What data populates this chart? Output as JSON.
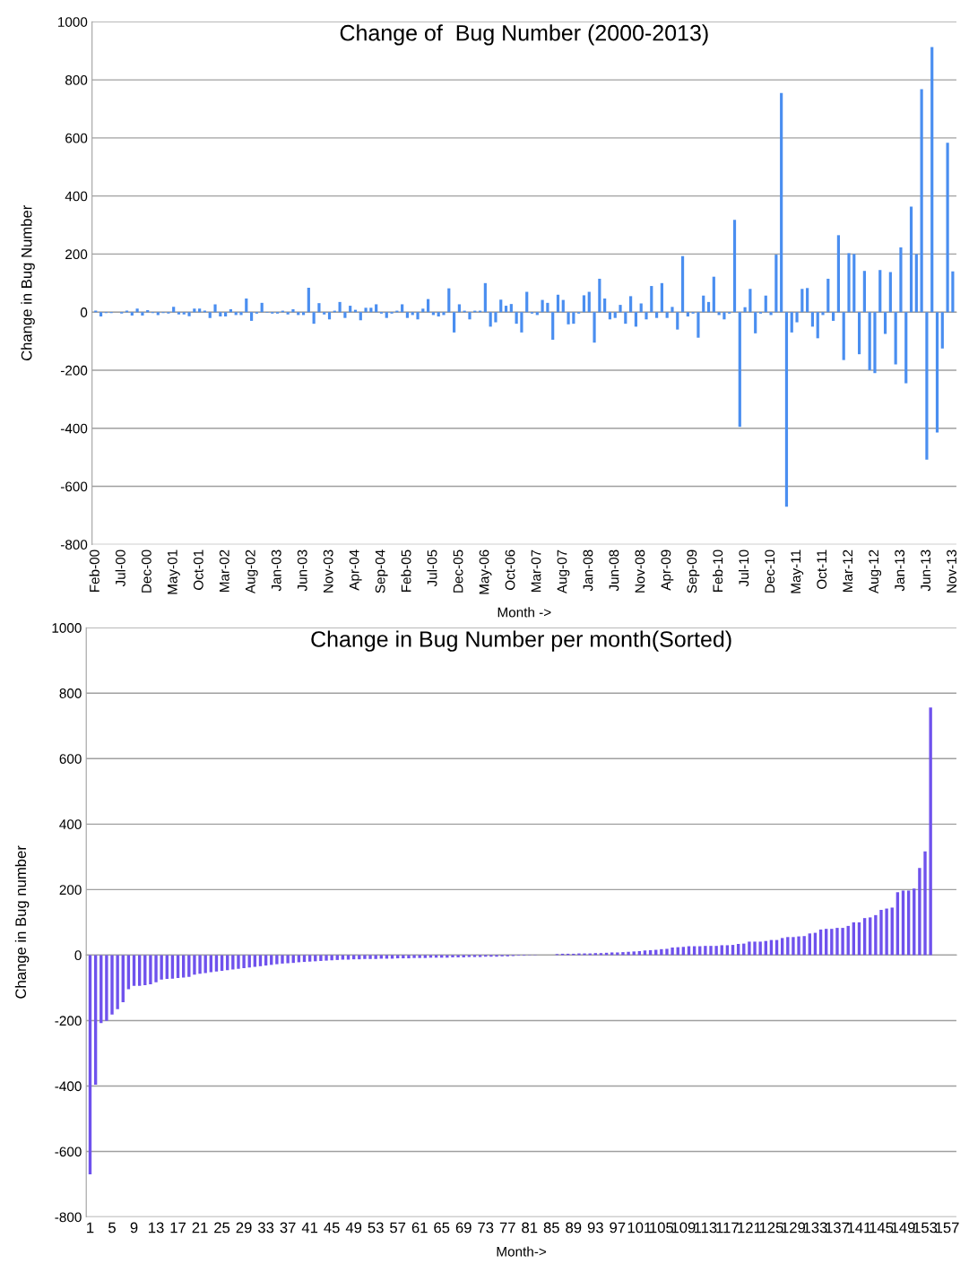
{
  "chart_data": [
    {
      "type": "bar",
      "title": "Change of  Bug Number (2000-2013)",
      "xlabel": "Month ->",
      "ylabel": "Change in Bug Number",
      "ylim": [
        -800,
        1000
      ],
      "yticks": [
        -800,
        -600,
        -400,
        -200,
        0,
        200,
        400,
        600,
        800,
        1000
      ],
      "grid": "y",
      "categories": [
        "Feb-00",
        null,
        null,
        null,
        null,
        "Jul-00",
        null,
        null,
        null,
        null,
        "Dec-00",
        null,
        null,
        null,
        null,
        "May-01",
        null,
        null,
        null,
        null,
        "Oct-01",
        null,
        null,
        null,
        null,
        "Mar-02",
        null,
        null,
        null,
        null,
        "Aug-02",
        null,
        null,
        null,
        null,
        "Jan-03",
        null,
        null,
        null,
        null,
        "Jun-03",
        null,
        null,
        null,
        null,
        "Nov-03",
        null,
        null,
        null,
        null,
        "Apr-04",
        null,
        null,
        null,
        null,
        "Sep-04",
        null,
        null,
        null,
        null,
        "Feb-05",
        null,
        null,
        null,
        null,
        "Jul-05",
        null,
        null,
        null,
        null,
        "Dec-05",
        null,
        null,
        null,
        null,
        "May-06",
        null,
        null,
        null,
        null,
        "Oct-06",
        null,
        null,
        null,
        null,
        "Mar-07",
        null,
        null,
        null,
        null,
        "Aug-07",
        null,
        null,
        null,
        null,
        "Jan-08",
        null,
        null,
        null,
        null,
        "Jun-08",
        null,
        null,
        null,
        null,
        "Nov-08",
        null,
        null,
        null,
        null,
        "Apr-09",
        null,
        null,
        null,
        null,
        "Sep-09",
        null,
        null,
        null,
        null,
        "Feb-10",
        null,
        null,
        null,
        null,
        "Jul-10",
        null,
        null,
        null,
        null,
        "Dec-10",
        null,
        null,
        null,
        null,
        "May-11",
        null,
        null,
        null,
        null,
        "Oct-11",
        null,
        null,
        null,
        null,
        "Mar-12",
        null,
        null,
        null,
        null,
        "Aug-12",
        null,
        null,
        null,
        null,
        "Jan-13",
        null,
        null,
        null,
        null,
        "Jun-13",
        null,
        null,
        null,
        null,
        "Nov-13"
      ],
      "series": [
        {
          "color": "#4a8ef0",
          "values": [
            5,
            -15,
            -3,
            -3,
            0,
            -5,
            5,
            -12,
            12,
            -12,
            7,
            -3,
            -10,
            -3,
            -5,
            18,
            -8,
            -8,
            -14,
            12,
            12,
            5,
            -20,
            27,
            -15,
            -15,
            10,
            -10,
            -10,
            47,
            -30,
            -5,
            32,
            -2,
            -5,
            -5,
            5,
            -8,
            10,
            -10,
            -10,
            84,
            -40,
            31,
            -8,
            -25,
            5,
            35,
            -20,
            22,
            8,
            -28,
            15,
            15,
            27,
            -5,
            -20,
            -5,
            5,
            27,
            -20,
            -10,
            -25,
            12,
            45,
            -10,
            -15,
            -10,
            82,
            -70,
            27,
            5,
            -25,
            5,
            5,
            100,
            -50,
            -35,
            43,
            22,
            28,
            -40,
            -70,
            70,
            -5,
            -10,
            42,
            32,
            -95,
            60,
            42,
            -42,
            -40,
            -5,
            58,
            70,
            -105,
            115,
            47,
            -25,
            -20,
            25,
            -40,
            55,
            -50,
            30,
            -25,
            90,
            -20,
            100,
            -20,
            18,
            -60,
            193,
            -15,
            -5,
            -88,
            57,
            35,
            122,
            -10,
            -25,
            -5,
            318,
            -395,
            17,
            80,
            -73,
            -5,
            57,
            -10,
            198,
            755,
            -670,
            -70,
            -35,
            80,
            83,
            -50,
            -90,
            -10,
            115,
            -30,
            265,
            -165,
            203,
            200,
            -145,
            142,
            -200,
            -210,
            145,
            -75,
            138,
            -180,
            223,
            -245,
            363,
            200,
            768,
            -508,
            913,
            -415,
            -125,
            583,
            140
          ]
        }
      ]
    },
    {
      "type": "bar",
      "title": "Change in Bug Number per month(Sorted)",
      "xlabel": "Month->",
      "ylabel": "Change in Bug number",
      "ylim": [
        -800,
        1000
      ],
      "yticks": [
        -800,
        -600,
        -400,
        -200,
        0,
        200,
        400,
        600,
        800,
        1000
      ],
      "grid": "y",
      "categories": [
        "1",
        null,
        null,
        null,
        "5",
        null,
        null,
        null,
        "9",
        null,
        null,
        null,
        "13",
        null,
        null,
        null,
        "17",
        null,
        null,
        null,
        "21",
        null,
        null,
        null,
        "25",
        null,
        null,
        null,
        "29",
        null,
        null,
        null,
        "33",
        null,
        null,
        null,
        "37",
        null,
        null,
        null,
        "41",
        null,
        null,
        null,
        "45",
        null,
        null,
        null,
        "49",
        null,
        null,
        null,
        "53",
        null,
        null,
        null,
        "57",
        null,
        null,
        null,
        "61",
        null,
        null,
        null,
        "65",
        null,
        null,
        null,
        "69",
        null,
        null,
        null,
        "73",
        null,
        null,
        null,
        "77",
        null,
        null,
        null,
        "81",
        null,
        null,
        null,
        "85",
        null,
        null,
        null,
        "89",
        null,
        null,
        null,
        "93",
        null,
        null,
        null,
        "97",
        null,
        null,
        null,
        "101",
        null,
        null,
        null,
        "105",
        null,
        null,
        null,
        "109",
        null,
        null,
        null,
        "113",
        null,
        null,
        null,
        "117",
        null,
        null,
        null,
        "121",
        null,
        null,
        null,
        "125",
        null,
        null,
        null,
        "129",
        null,
        null,
        null,
        "133",
        null,
        null,
        null,
        "137",
        null,
        null,
        null,
        "141",
        null,
        null,
        null,
        "145",
        null,
        null,
        null,
        "149",
        null,
        null,
        null,
        "153",
        null,
        null,
        null,
        "157",
        null
      ],
      "series": [
        {
          "color": "#6f52ed",
          "values": [
            -670,
            -396,
            -208,
            -201,
            -182,
            -165,
            -144,
            -104,
            -94,
            -94,
            -92,
            -89,
            -83,
            -75,
            -73,
            -72,
            -70,
            -69,
            -67,
            -60,
            -57,
            -55,
            -52,
            -50,
            -48,
            -46,
            -44,
            -42,
            -40,
            -38,
            -36,
            -34,
            -32,
            -30,
            -28,
            -26,
            -25,
            -24,
            -22,
            -21,
            -20,
            -19,
            -18,
            -17,
            -16,
            -15,
            -14,
            -14,
            -13,
            -13,
            -12,
            -12,
            -12,
            -11,
            -11,
            -11,
            -10,
            -10,
            -10,
            -9,
            -9,
            -9,
            -8,
            -8,
            -8,
            -8,
            -7,
            -7,
            -7,
            -6,
            -6,
            -6,
            -5,
            -5,
            -5,
            -4,
            -4,
            -3,
            -2,
            -2,
            -1,
            -1,
            0,
            0,
            0,
            3,
            4,
            4,
            4,
            5,
            5,
            5,
            6,
            6,
            7,
            8,
            8,
            9,
            10,
            11,
            12,
            14,
            15,
            16,
            18,
            19,
            23,
            24,
            25,
            27,
            27,
            27,
            28,
            28,
            28,
            30,
            30,
            31,
            34,
            35,
            41,
            41,
            41,
            43,
            46,
            46,
            52,
            55,
            55,
            57,
            58,
            66,
            68,
            78,
            80,
            80,
            83,
            83,
            89,
            100,
            100,
            113,
            115,
            122,
            138,
            142,
            145,
            192,
            197,
            197,
            203,
            266,
            317,
            756,
            null,
            null,
            null,
            null
          ]
        }
      ]
    }
  ]
}
